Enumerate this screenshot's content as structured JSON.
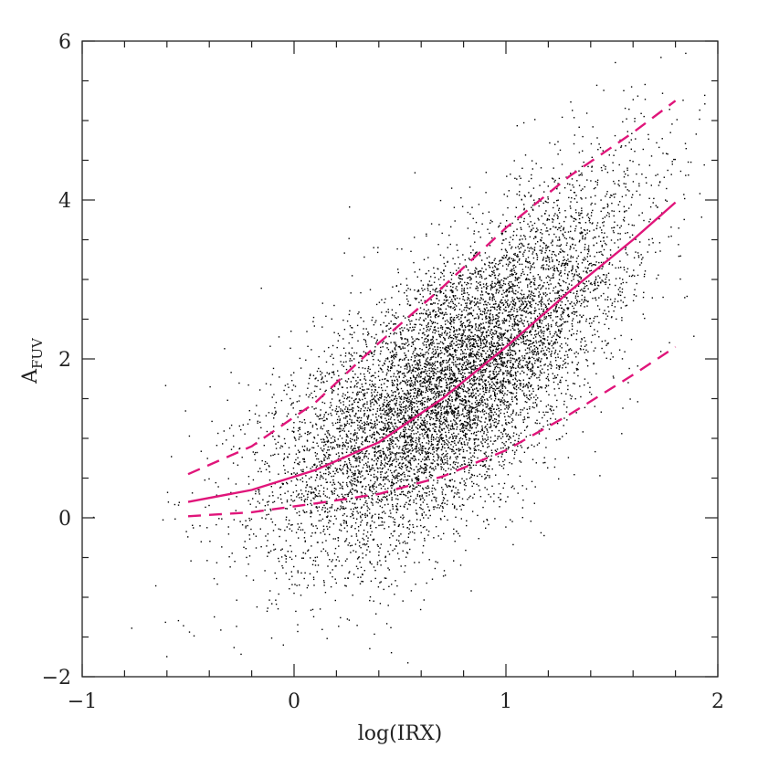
{
  "chart_data": {
    "type": "scatter",
    "xlabel": "log(IRX)",
    "ylabel": {
      "main": "A",
      "sub": "FUV"
    },
    "xlim": [
      -1,
      2
    ],
    "ylim": [
      -2,
      6
    ],
    "x_major_ticks": [
      -1,
      0,
      1,
      2
    ],
    "x_tick_labels": [
      "−1",
      "0",
      "1",
      "2"
    ],
    "x_minor_step": 0.2,
    "y_major_ticks": [
      -2,
      0,
      2,
      4,
      6
    ],
    "y_tick_labels": [
      "−2",
      "0",
      "2",
      "4",
      "6"
    ],
    "y_minor_step": 0.5,
    "grid": false,
    "point_color": "#000000",
    "curve_color": "#e0157a",
    "scatter": {
      "approx_count": 9000,
      "center_x": 0.75,
      "center_y": 1.75,
      "note_x_range": [
        -1,
        1.95
      ],
      "note_y_range": [
        -2,
        6
      ]
    },
    "series": [
      {
        "style": "solid",
        "x": [
          -0.5,
          -0.2,
          0.1,
          0.4,
          0.7,
          1.0,
          1.3,
          1.6,
          1.8
        ],
        "y": [
          0.2,
          0.35,
          0.6,
          0.95,
          1.5,
          2.15,
          2.85,
          3.5,
          3.97
        ]
      },
      {
        "style": "dashed",
        "x": [
          -0.5,
          -0.2,
          0.1,
          0.4,
          0.7,
          1.0,
          1.3,
          1.6,
          1.8
        ],
        "y": [
          0.55,
          0.9,
          1.45,
          2.2,
          2.9,
          3.65,
          4.3,
          4.85,
          5.25
        ]
      },
      {
        "style": "dashed",
        "x": [
          -0.5,
          -0.2,
          0.1,
          0.4,
          0.7,
          1.0,
          1.3,
          1.6,
          1.8
        ],
        "y": [
          0.02,
          0.07,
          0.18,
          0.3,
          0.52,
          0.85,
          1.3,
          1.8,
          2.15
        ]
      }
    ]
  }
}
